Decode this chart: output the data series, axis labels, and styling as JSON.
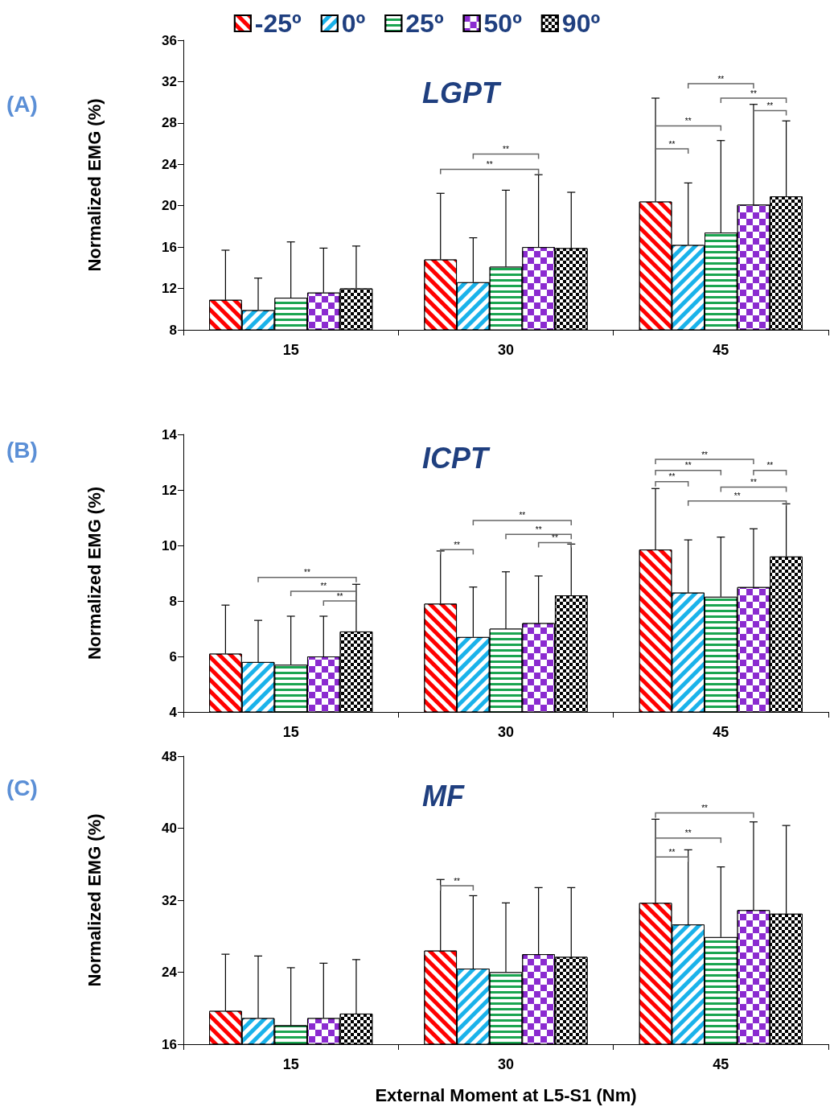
{
  "chart_data": [
    {
      "type": "bar",
      "title": "LGPT",
      "ylabel": "Normalized EMG (%)",
      "categories": [
        "15",
        "30",
        "45"
      ],
      "ylim": [
        8,
        36
      ],
      "yticks": [
        8,
        12,
        16,
        20,
        24,
        28,
        32,
        36
      ],
      "grid": false,
      "legend": "top",
      "series": [
        {
          "name": "-25º",
          "color": "#ff0000",
          "values": [
            10.9,
            14.8,
            20.4
          ],
          "errors": [
            [
              10.9,
              15.7
            ],
            [
              14.8,
              21.2
            ],
            [
              20.4,
              30.4
            ]
          ]
        },
        {
          "name": "0º",
          "color": "#1ab2ea",
          "values": [
            9.9,
            12.6,
            16.2
          ],
          "errors": [
            [
              9.9,
              13.0
            ],
            [
              12.6,
              16.9
            ],
            [
              16.2,
              22.2
            ]
          ]
        },
        {
          "name": "25º",
          "color": "#1aa550",
          "values": [
            11.1,
            14.1,
            17.4
          ],
          "errors": [
            [
              11.1,
              16.5
            ],
            [
              14.1,
              21.5
            ],
            [
              17.4,
              26.3
            ]
          ]
        },
        {
          "name": "50º",
          "color": "#8b2bd0",
          "values": [
            11.6,
            16.0,
            20.1
          ],
          "errors": [
            [
              11.6,
              15.9
            ],
            [
              16.0,
              23.0
            ],
            [
              20.1,
              29.8
            ]
          ]
        },
        {
          "name": "90º",
          "color": "#000000",
          "values": [
            12.0,
            15.9,
            20.9
          ],
          "errors": [
            [
              12.0,
              16.1
            ],
            [
              15.9,
              21.3
            ],
            [
              20.9,
              28.2
            ]
          ]
        }
      ],
      "annotations": [
        "(A)",
        "**",
        "**",
        "**",
        "**",
        "**",
        "**",
        "**"
      ]
    },
    {
      "type": "bar",
      "title": "ICPT",
      "ylabel": "Normalized EMG (%)",
      "categories": [
        "15",
        "30",
        "45"
      ],
      "ylim": [
        4,
        14
      ],
      "yticks": [
        4,
        6,
        8,
        10,
        12,
        14
      ],
      "grid": false,
      "series": [
        {
          "color": "#ff0000",
          "values": [
            6.1,
            7.9,
            9.85
          ],
          "errors": [
            [
              6.1,
              7.85
            ],
            [
              7.9,
              9.8
            ],
            [
              9.85,
              12.05
            ]
          ]
        },
        {
          "color": "#1ab2ea",
          "values": [
            5.8,
            6.7,
            8.3
          ],
          "errors": [
            [
              5.8,
              7.3
            ],
            [
              6.7,
              8.5
            ],
            [
              8.3,
              10.2
            ]
          ]
        },
        {
          "color": "#1aa550",
          "values": [
            5.7,
            7.0,
            8.15
          ],
          "errors": [
            [
              5.7,
              7.45
            ],
            [
              7.0,
              9.05
            ],
            [
              8.15,
              10.3
            ]
          ]
        },
        {
          "color": "#8b2bd0",
          "values": [
            6.0,
            7.2,
            8.5
          ],
          "errors": [
            [
              6.0,
              7.45
            ],
            [
              7.2,
              8.9
            ],
            [
              8.5,
              10.6
            ]
          ]
        },
        {
          "color": "#000000",
          "values": [
            6.9,
            8.2,
            9.6
          ],
          "errors": [
            [
              6.9,
              8.6
            ],
            [
              8.2,
              10.05
            ],
            [
              9.6,
              11.5
            ]
          ]
        }
      ],
      "annotations": [
        "(B)",
        "**",
        "**",
        "**",
        "**",
        "**",
        "**",
        "**",
        "**",
        "**",
        "**",
        "**",
        "**",
        "**"
      ]
    },
    {
      "type": "bar",
      "title": "MF",
      "ylabel": "Normalized EMG (%)",
      "xlabel": "External Moment at L5-S1 (Nm)",
      "categories": [
        "15",
        "30",
        "45"
      ],
      "ylim": [
        16,
        48
      ],
      "yticks": [
        16,
        24,
        32,
        40,
        48
      ],
      "grid": false,
      "series": [
        {
          "color": "#ff0000",
          "values": [
            19.7,
            26.4,
            31.7
          ],
          "errors": [
            [
              19.7,
              26.0
            ],
            [
              26.4,
              34.3
            ],
            [
              31.7,
              41.0
            ]
          ]
        },
        {
          "color": "#1ab2ea",
          "values": [
            18.9,
            24.4,
            29.3
          ],
          "errors": [
            [
              18.9,
              25.8
            ],
            [
              24.4,
              32.5
            ],
            [
              29.3,
              37.6
            ]
          ]
        },
        {
          "color": "#1aa550",
          "values": [
            18.1,
            24.0,
            27.9
          ],
          "errors": [
            [
              18.1,
              24.5
            ],
            [
              24.0,
              31.7
            ],
            [
              27.9,
              35.7
            ]
          ]
        },
        {
          "color": "#8b2bd0",
          "values": [
            18.9,
            26.0,
            30.9
          ],
          "errors": [
            [
              18.9,
              25.0
            ],
            [
              26.0,
              33.4
            ],
            [
              30.9,
              40.7
            ]
          ]
        },
        {
          "color": "#000000",
          "values": [
            19.4,
            25.7,
            30.5
          ],
          "errors": [
            [
              19.4,
              25.4
            ],
            [
              25.7,
              33.4
            ],
            [
              30.5,
              40.3
            ]
          ]
        }
      ],
      "annotations": [
        "(C)",
        "**",
        "**",
        "**",
        "**"
      ]
    }
  ]
}
